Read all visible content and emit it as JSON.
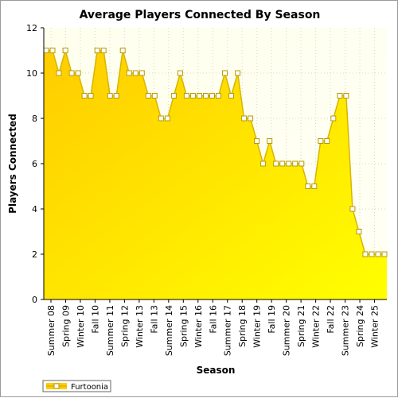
{
  "chart_data": {
    "type": "area",
    "title": "Average Players Connected By Season",
    "xlabel": "Season",
    "ylabel": "Players Connected",
    "ylim": [
      0,
      12
    ],
    "y_ticks": [
      0,
      2,
      4,
      6,
      8,
      10,
      12
    ],
    "grid": true,
    "legend_position": "bottom-left",
    "x_tick_labels": [
      "Summer 08",
      "Spring 09",
      "Winter 10",
      "Fall 10",
      "Summer 11",
      "Spring 12",
      "Winter 13",
      "Fall 13",
      "Summer 14",
      "Spring 15",
      "Winter 16",
      "Fall 16",
      "Summer 17",
      "Spring 18",
      "Winter 19",
      "Fall 19",
      "Summer 20",
      "Spring 21",
      "Winter 22",
      "Fall 22",
      "Summer 23",
      "Spring 24",
      "Winter 25"
    ],
    "series": [
      {
        "name": "Furtoonia",
        "color": "#e8c400",
        "fill_top": "#ffd700",
        "fill_bottom": "#ffff00",
        "values": [
          11,
          11,
          10,
          11,
          10,
          10,
          9,
          9,
          11,
          11,
          9,
          9,
          11,
          10,
          10,
          10,
          9,
          9,
          8,
          8,
          9,
          10,
          9,
          9,
          9,
          9,
          9,
          9,
          10,
          9,
          10,
          8,
          8,
          7,
          6,
          7,
          6,
          6,
          6,
          6,
          6,
          5,
          5,
          7,
          7,
          8,
          9,
          9,
          4,
          3,
          2,
          2,
          2,
          2
        ]
      }
    ]
  },
  "legend": {
    "label": "Furtoonia"
  }
}
